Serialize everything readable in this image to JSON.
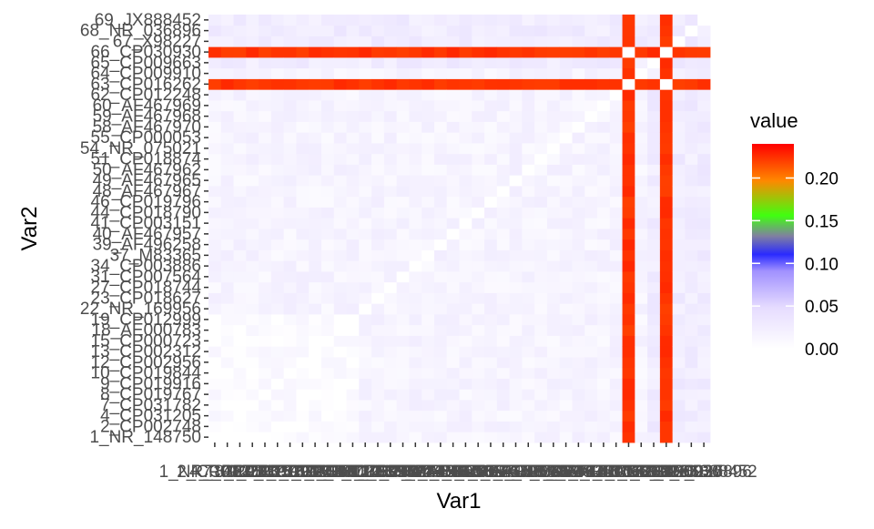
{
  "chart_data": {
    "type": "heatmap",
    "xlabel": "Var1",
    "ylabel": "Var2",
    "legend": {
      "title": "value",
      "position": "right",
      "ticks": [
        {
          "value": 0.0,
          "label": "0.00"
        },
        {
          "value": 0.05,
          "label": "0.05"
        },
        {
          "value": 0.1,
          "label": "0.10"
        },
        {
          "value": 0.15,
          "label": "0.15"
        },
        {
          "value": 0.2,
          "label": "0.20"
        }
      ],
      "range": [
        0,
        0.24
      ],
      "gradient": [
        "#ffffff",
        "#e8e0ff",
        "#b8a8ff",
        "#2020ff",
        "#808080",
        "#40ff00",
        "#ff8000",
        "#ff0000"
      ]
    },
    "y_labels": [
      "1_NR_148750",
      "2_CP002748",
      "4_CP031205",
      "7_CP031782",
      "8_CP019767",
      "9_CP019916",
      "10_CP019844",
      "12_CP002956",
      "13_CP002312",
      "15_CP000723",
      "18_AE000783",
      "19_CP012999",
      "22_NR_169956",
      "23_CP018627",
      "27_CP018744",
      "31_CP007564",
      "34_CP003886",
      "37_M83365",
      "39_AF496258",
      "40_AF467957",
      "41_CP003151",
      "44_CP018790",
      "46_CP019796",
      "48_AF467967",
      "49_AF467965",
      "50_AF467962",
      "51_CP018874",
      "54_NR_075021",
      "55_CP000053",
      "58_AF467970",
      "59_AF467968",
      "60_AF467969",
      "62_CP012248",
      "63_CP016262",
      "64_CP009910",
      "65_CP009663",
      "66_CP030930",
      "67_X98227",
      "68_NR_036896",
      "69_JX888452"
    ],
    "x_labels_visible": [
      "1_NR_148750",
      "69_JX888452"
    ],
    "high_rows": [
      "63_CP016262",
      "66_CP030930"
    ],
    "high_columns": [
      "63_CP016262",
      "66_CP030930"
    ],
    "high_value": 0.23,
    "diagonal_value": 0.0,
    "background_value_range": [
      0.0,
      0.03
    ]
  }
}
